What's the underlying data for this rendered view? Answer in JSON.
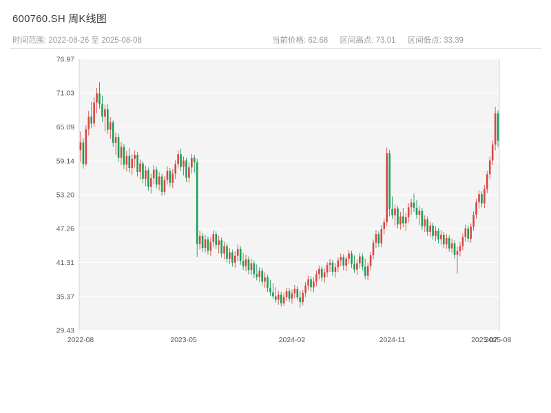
{
  "header": {
    "title": "600760.SH 周K线图",
    "time_range": "时间范围: 2022-08-26 至 2025-08-08",
    "current_price": "当前价格: 62.68",
    "range_high": "区间高点: 73.01",
    "range_low": "区间低点: 33.39"
  },
  "chart_data": {
    "type": "candlestick",
    "symbol": "600760.SH",
    "interval": "weekly",
    "title": "600760.SH 周K线图",
    "start_date": "2022-08-26",
    "end_date": "2025-08-08",
    "current_price": 62.68,
    "range_high": 73.01,
    "range_low": 33.39,
    "ylim": [
      29.43,
      76.97
    ],
    "y_ticks": [
      76.97,
      71.03,
      65.09,
      59.14,
      53.2,
      47.26,
      41.31,
      35.37,
      29.43
    ],
    "x_ticks": [
      {
        "index": 0,
        "label": "2022-08"
      },
      {
        "index": 38,
        "label": "2023-05"
      },
      {
        "index": 78,
        "label": "2024-02"
      },
      {
        "index": 115,
        "label": "2024-11"
      },
      {
        "index": 149,
        "label": "2025-07"
      },
      {
        "index": 154,
        "label": "2025-08"
      }
    ],
    "grid": true,
    "plot_bg": "#f4f4f5",
    "up_color": "#d94743",
    "down_color": "#1e9e53",
    "ohlc": [
      [
        61.0,
        64.3,
        58.9,
        62.4
      ],
      [
        62.4,
        63.1,
        57.8,
        58.6
      ],
      [
        58.6,
        65.4,
        58.2,
        64.7
      ],
      [
        64.7,
        67.9,
        63.6,
        66.9
      ],
      [
        66.9,
        69.5,
        64.9,
        65.7
      ],
      [
        65.7,
        70.3,
        65.1,
        69.4
      ],
      [
        69.4,
        71.9,
        67.5,
        71.0
      ],
      [
        71.0,
        73.01,
        68.3,
        69.1
      ],
      [
        69.1,
        70.6,
        66.0,
        66.9
      ],
      [
        66.9,
        69.0,
        64.3,
        68.2
      ],
      [
        68.2,
        69.1,
        63.9,
        64.6
      ],
      [
        64.6,
        66.8,
        63.0,
        65.9
      ],
      [
        65.9,
        66.3,
        61.6,
        62.3
      ],
      [
        62.3,
        64.1,
        60.2,
        63.3
      ],
      [
        63.3,
        63.9,
        59.0,
        59.7
      ],
      [
        59.7,
        62.5,
        58.4,
        61.6
      ],
      [
        61.6,
        62.1,
        57.7,
        58.5
      ],
      [
        58.5,
        60.9,
        57.3,
        60.0
      ],
      [
        60.0,
        61.4,
        57.1,
        57.9
      ],
      [
        57.9,
        60.3,
        56.7,
        59.5
      ],
      [
        59.5,
        61.0,
        58.0,
        60.2
      ],
      [
        60.2,
        60.7,
        56.4,
        57.2
      ],
      [
        57.2,
        59.4,
        55.9,
        58.7
      ],
      [
        58.7,
        59.1,
        55.2,
        56.0
      ],
      [
        56.0,
        58.3,
        54.7,
        57.5
      ],
      [
        57.5,
        58.0,
        53.9,
        54.6
      ],
      [
        54.6,
        56.9,
        53.4,
        56.1
      ],
      [
        56.1,
        58.4,
        55.1,
        57.6
      ],
      [
        57.6,
        58.1,
        54.3,
        55.0
      ],
      [
        55.0,
        57.2,
        54.0,
        56.4
      ],
      [
        56.4,
        56.9,
        53.0,
        53.7
      ],
      [
        53.7,
        56.5,
        53.2,
        55.8
      ],
      [
        55.8,
        58.2,
        55.0,
        57.4
      ],
      [
        57.4,
        57.9,
        54.6,
        55.3
      ],
      [
        55.3,
        57.7,
        54.4,
        56.9
      ],
      [
        56.9,
        59.3,
        56.0,
        58.6
      ],
      [
        58.6,
        61.0,
        57.8,
        60.3
      ],
      [
        60.3,
        61.3,
        57.4,
        58.1
      ],
      [
        58.1,
        59.9,
        56.6,
        59.2
      ],
      [
        59.2,
        59.7,
        55.5,
        56.2
      ],
      [
        56.2,
        58.8,
        55.3,
        58.0
      ],
      [
        58.0,
        60.4,
        56.9,
        59.7
      ],
      [
        59.7,
        60.2,
        57.1,
        58.9
      ],
      [
        58.9,
        59.5,
        42.3,
        44.6
      ],
      [
        44.6,
        46.9,
        43.6,
        46.0
      ],
      [
        46.0,
        46.5,
        43.2,
        43.9
      ],
      [
        43.9,
        46.2,
        43.1,
        45.4
      ],
      [
        45.4,
        45.9,
        42.7,
        43.4
      ],
      [
        43.4,
        45.7,
        42.5,
        44.9
      ],
      [
        44.9,
        47.0,
        44.0,
        46.3
      ],
      [
        46.3,
        46.8,
        43.7,
        44.4
      ],
      [
        44.4,
        46.0,
        42.9,
        45.2
      ],
      [
        45.2,
        45.7,
        42.2,
        42.9
      ],
      [
        42.9,
        45.0,
        41.9,
        44.2
      ],
      [
        44.2,
        44.7,
        41.3,
        42.0
      ],
      [
        42.0,
        43.9,
        41.0,
        43.1
      ],
      [
        43.1,
        43.6,
        40.6,
        41.3
      ],
      [
        41.3,
        43.3,
        40.4,
        42.5
      ],
      [
        42.5,
        44.5,
        41.6,
        43.7
      ],
      [
        43.7,
        44.2,
        40.9,
        41.6
      ],
      [
        41.6,
        43.0,
        40.0,
        40.7
      ],
      [
        40.7,
        42.7,
        39.8,
        41.9
      ],
      [
        41.9,
        42.4,
        39.3,
        40.0
      ],
      [
        40.0,
        42.0,
        39.1,
        41.2
      ],
      [
        41.2,
        41.7,
        38.6,
        39.3
      ],
      [
        39.3,
        41.0,
        38.2,
        38.8
      ],
      [
        38.8,
        40.5,
        37.9,
        39.9
      ],
      [
        39.9,
        40.4,
        37.3,
        38.0
      ],
      [
        38.0,
        39.6,
        36.9,
        38.7
      ],
      [
        38.7,
        39.2,
        36.2,
        36.9
      ],
      [
        36.9,
        38.3,
        35.5,
        36.1
      ],
      [
        36.1,
        37.7,
        34.9,
        35.4
      ],
      [
        35.4,
        37.0,
        34.3,
        34.8
      ],
      [
        34.8,
        36.4,
        33.9,
        35.7
      ],
      [
        35.7,
        36.2,
        33.6,
        34.2
      ],
      [
        34.2,
        36.0,
        33.7,
        35.3
      ],
      [
        35.3,
        36.9,
        34.6,
        36.3
      ],
      [
        36.3,
        36.8,
        34.4,
        35.0
      ],
      [
        35.0,
        36.6,
        34.1,
        35.9
      ],
      [
        35.9,
        37.4,
        35.1,
        36.7
      ],
      [
        36.7,
        37.2,
        34.7,
        35.2
      ],
      [
        35.2,
        36.3,
        33.39,
        34.4
      ],
      [
        34.4,
        36.5,
        33.8,
        36.0
      ],
      [
        36.0,
        37.9,
        35.3,
        37.3
      ],
      [
        37.3,
        39.0,
        36.5,
        38.4
      ],
      [
        38.4,
        38.9,
        36.3,
        37.0
      ],
      [
        37.0,
        38.7,
        36.1,
        38.0
      ],
      [
        38.0,
        39.9,
        37.2,
        39.3
      ],
      [
        39.3,
        40.8,
        38.4,
        40.2
      ],
      [
        40.2,
        40.7,
        38.0,
        38.7
      ],
      [
        38.7,
        40.3,
        37.8,
        39.6
      ],
      [
        39.6,
        41.4,
        38.8,
        40.9
      ],
      [
        40.9,
        42.0,
        39.7,
        41.3
      ],
      [
        41.3,
        41.8,
        39.0,
        39.7
      ],
      [
        39.7,
        41.2,
        38.7,
        40.5
      ],
      [
        40.5,
        42.2,
        39.6,
        41.7
      ],
      [
        41.7,
        42.9,
        40.7,
        42.3
      ],
      [
        42.3,
        42.8,
        40.0,
        40.8
      ],
      [
        40.8,
        42.4,
        39.8,
        42.0
      ],
      [
        42.0,
        43.5,
        41.1,
        42.9
      ],
      [
        42.9,
        43.4,
        40.4,
        41.1
      ],
      [
        41.1,
        42.6,
        39.5,
        40.1
      ],
      [
        40.1,
        41.9,
        39.2,
        41.2
      ],
      [
        41.2,
        43.0,
        40.3,
        42.4
      ],
      [
        42.4,
        42.9,
        39.9,
        40.6
      ],
      [
        40.6,
        42.0,
        38.4,
        39.0
      ],
      [
        39.0,
        41.3,
        38.2,
        40.7
      ],
      [
        40.7,
        43.2,
        40.0,
        42.6
      ],
      [
        42.6,
        45.4,
        41.9,
        44.8
      ],
      [
        44.8,
        47.0,
        43.9,
        46.3
      ],
      [
        46.3,
        46.8,
        44.0,
        44.7
      ],
      [
        44.7,
        47.9,
        44.0,
        47.2
      ],
      [
        47.2,
        49.0,
        46.3,
        48.4
      ],
      [
        48.4,
        61.5,
        47.7,
        60.5
      ],
      [
        60.5,
        61.1,
        49.4,
        50.7
      ],
      [
        50.7,
        52.9,
        49.0,
        49.6
      ],
      [
        49.6,
        51.5,
        47.7,
        50.8
      ],
      [
        50.8,
        51.3,
        47.3,
        48.0
      ],
      [
        48.0,
        50.2,
        47.1,
        49.4
      ],
      [
        49.4,
        50.9,
        47.5,
        48.2
      ],
      [
        48.2,
        50.0,
        46.9,
        49.3
      ],
      [
        49.3,
        51.7,
        48.4,
        51.0
      ],
      [
        51.0,
        52.5,
        49.7,
        51.8
      ],
      [
        51.8,
        53.4,
        50.2,
        50.9
      ],
      [
        50.9,
        52.3,
        49.0,
        49.7
      ],
      [
        49.7,
        51.2,
        47.9,
        50.4
      ],
      [
        50.4,
        50.9,
        47.0,
        47.7
      ],
      [
        47.7,
        49.6,
        46.7,
        48.9
      ],
      [
        48.9,
        49.4,
        46.0,
        46.7
      ],
      [
        46.7,
        48.5,
        45.8,
        47.8
      ],
      [
        47.8,
        48.3,
        45.3,
        46.0
      ],
      [
        46.0,
        47.7,
        45.1,
        46.9
      ],
      [
        46.9,
        47.4,
        44.7,
        45.4
      ],
      [
        45.4,
        47.0,
        44.4,
        46.2
      ],
      [
        46.2,
        46.7,
        43.9,
        44.5
      ],
      [
        44.5,
        46.3,
        43.7,
        45.6
      ],
      [
        45.6,
        46.1,
        43.2,
        43.8
      ],
      [
        43.8,
        45.5,
        43.0,
        44.7
      ],
      [
        44.7,
        45.2,
        42.0,
        42.7
      ],
      [
        42.7,
        44.1,
        39.4,
        43.3
      ],
      [
        43.3,
        44.9,
        42.4,
        44.2
      ],
      [
        44.2,
        46.4,
        43.5,
        45.8
      ],
      [
        45.8,
        48.0,
        45.0,
        47.3
      ],
      [
        47.3,
        47.8,
        44.9,
        45.5
      ],
      [
        45.5,
        48.2,
        44.8,
        47.6
      ],
      [
        47.6,
        50.3,
        46.9,
        49.7
      ],
      [
        49.7,
        52.5,
        49.0,
        51.9
      ],
      [
        51.9,
        54.0,
        50.8,
        53.3
      ],
      [
        53.3,
        53.8,
        51.0,
        51.7
      ],
      [
        51.7,
        54.9,
        50.9,
        54.2
      ],
      [
        54.2,
        57.4,
        53.5,
        56.8
      ],
      [
        56.8,
        59.9,
        56.0,
        59.2
      ],
      [
        59.2,
        62.7,
        58.4,
        62.0
      ],
      [
        62.0,
        68.62,
        61.0,
        67.5
      ],
      [
        67.5,
        68.0,
        61.6,
        62.68
      ]
    ]
  }
}
